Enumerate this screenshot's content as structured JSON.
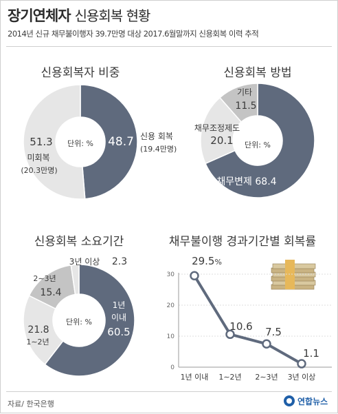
{
  "header": {
    "title_bold": "장기연체자",
    "title_light": "신용회복 현황",
    "subtitle": "2014년 신규 채무불이행자 39.7만명 대상 2017.6월말까지 신용회복 이력 추적"
  },
  "footer": {
    "source": "자료/ 한국은행",
    "logo_text": "연합뉴스"
  },
  "colors": {
    "dark": "#5f6a7d",
    "light": "#e6e6e6",
    "mid": "#c4c4c4",
    "text": "#3a3a3a"
  },
  "chart_data": [
    {
      "type": "pie",
      "title": "신용회복자 비중",
      "center_label": "단위: %",
      "slices": [
        {
          "value": 48.7,
          "label": "48.7",
          "name": "신용 회복",
          "note": "(19.4만명)",
          "color": "dark"
        },
        {
          "value": 51.3,
          "label": "51.3",
          "name": "미회복",
          "note": "(20.3만명)",
          "color": "light"
        }
      ]
    },
    {
      "type": "pie",
      "title": "신용회복 방법",
      "center_label": "단위: %",
      "slices": [
        {
          "value": 68.4,
          "label": "68.4",
          "name": "채무변제",
          "color": "dark"
        },
        {
          "value": 20.1,
          "label": "20.1",
          "name": "채무조정제도",
          "color": "light"
        },
        {
          "value": 11.5,
          "label": "11.5",
          "name": "기타",
          "color": "mid"
        }
      ]
    },
    {
      "type": "pie",
      "title": "신용회복 소요기간",
      "center_label": "단위: %",
      "slices": [
        {
          "value": 60.5,
          "label": "60.5",
          "name": "1년 이내",
          "color": "dark"
        },
        {
          "value": 21.8,
          "label": "21.8",
          "name": "1∼2년",
          "color": "light"
        },
        {
          "value": 15.4,
          "label": "15.4",
          "name": "2∼3년",
          "color": "mid"
        },
        {
          "value": 2.3,
          "label": "2.3",
          "name": "3년 이상",
          "color": "light"
        }
      ]
    },
    {
      "type": "line",
      "title": "채무불이행 경과기간별 회복률",
      "categories": [
        "1년 이내",
        "1∼2년",
        "2∼3년",
        "3년 이상"
      ],
      "values": [
        29.5,
        10.6,
        7.5,
        1.1
      ],
      "value_labels": [
        "29.5",
        "10.6",
        "7.5",
        "1.1"
      ],
      "first_label_unit": "%",
      "ylim": [
        0,
        30
      ],
      "yticks": [
        0,
        10,
        20,
        30
      ],
      "grid": true,
      "color": "dark"
    }
  ]
}
